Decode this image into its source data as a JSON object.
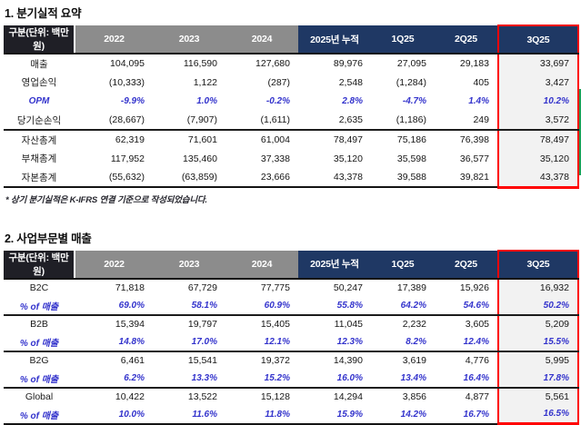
{
  "colors": {
    "accent_navy": "#1F3864",
    "header_gray": "#8C8C8C",
    "header_dark": "#1F1F26",
    "highlight_red": "#FF0000",
    "pct_blue": "#3333CC",
    "q3_bg": "#F2F2F2",
    "artifact_green": "#1F9E57"
  },
  "section1": {
    "title": "1. 분기실적 요약",
    "header": [
      "구분(단위: 백만원)",
      "2022",
      "2023",
      "2024",
      "2025년 누적",
      "1Q25",
      "2Q25",
      "3Q25"
    ],
    "rows": [
      {
        "label": "매출",
        "values": [
          "104,095",
          "116,590",
          "127,680",
          "89,976",
          "27,095",
          "29,183",
          "33,697"
        ]
      },
      {
        "label": "영업손익",
        "values": [
          "(10,333)",
          "1,122",
          "(287)",
          "2,548",
          "(1,284)",
          "405",
          "3,427"
        ]
      },
      {
        "label": "OPM",
        "pct": true,
        "values": [
          "-9.9%",
          "1.0%",
          "-0.2%",
          "2.8%",
          "-4.7%",
          "1.4%",
          "10.2%"
        ]
      },
      {
        "label": "당기순손익",
        "group_end": true,
        "values": [
          "(28,667)",
          "(7,907)",
          "(1,611)",
          "2,635",
          "(1,186)",
          "249",
          "3,572"
        ]
      },
      {
        "label": "자산총계",
        "values": [
          "62,319",
          "71,601",
          "61,004",
          "78,497",
          "75,186",
          "76,398",
          "78,497"
        ]
      },
      {
        "label": "부채총계",
        "values": [
          "117,952",
          "135,460",
          "37,338",
          "35,120",
          "35,598",
          "36,577",
          "35,120"
        ]
      },
      {
        "label": "자본총계",
        "values": [
          "(55,632)",
          "(63,859)",
          "23,666",
          "43,378",
          "39,588",
          "39,821",
          "43,378"
        ]
      }
    ],
    "footnote": "* 상기 분기실적은 K-IFRS 연결 기준으로 작성되었습니다."
  },
  "section2": {
    "title": "2. 사업부문별 매출",
    "header": [
      "구분(단위: 백만원)",
      "2022",
      "2023",
      "2024",
      "2025년 누적",
      "1Q25",
      "2Q25",
      "3Q25"
    ],
    "rows": [
      {
        "label": "B2C",
        "values": [
          "71,818",
          "67,729",
          "77,775",
          "50,247",
          "17,389",
          "15,926",
          "16,932"
        ]
      },
      {
        "label": "% of 매출",
        "pct": true,
        "group_end": true,
        "values": [
          "69.0%",
          "58.1%",
          "60.9%",
          "55.8%",
          "64.2%",
          "54.6%",
          "50.2%"
        ]
      },
      {
        "label": "B2B",
        "values": [
          "15,394",
          "19,797",
          "15,405",
          "11,045",
          "2,232",
          "3,605",
          "5,209"
        ]
      },
      {
        "label": "% of 매출",
        "pct": true,
        "group_end": true,
        "values": [
          "14.8%",
          "17.0%",
          "12.1%",
          "12.3%",
          "8.2%",
          "12.4%",
          "15.5%"
        ]
      },
      {
        "label": "B2G",
        "values": [
          "6,461",
          "15,541",
          "19,372",
          "14,390",
          "3,619",
          "4,776",
          "5,995"
        ]
      },
      {
        "label": "% of 매출",
        "pct": true,
        "group_end": true,
        "values": [
          "6.2%",
          "13.3%",
          "15.2%",
          "16.0%",
          "13.4%",
          "16.4%",
          "17.8%"
        ]
      },
      {
        "label": "Global",
        "values": [
          "10,422",
          "13,522",
          "15,128",
          "14,294",
          "3,856",
          "4,877",
          "5,561"
        ]
      },
      {
        "label": "% of 매출",
        "pct": true,
        "values": [
          "10.0%",
          "11.6%",
          "11.8%",
          "15.9%",
          "14.2%",
          "16.7%",
          "16.5%"
        ]
      }
    ]
  }
}
